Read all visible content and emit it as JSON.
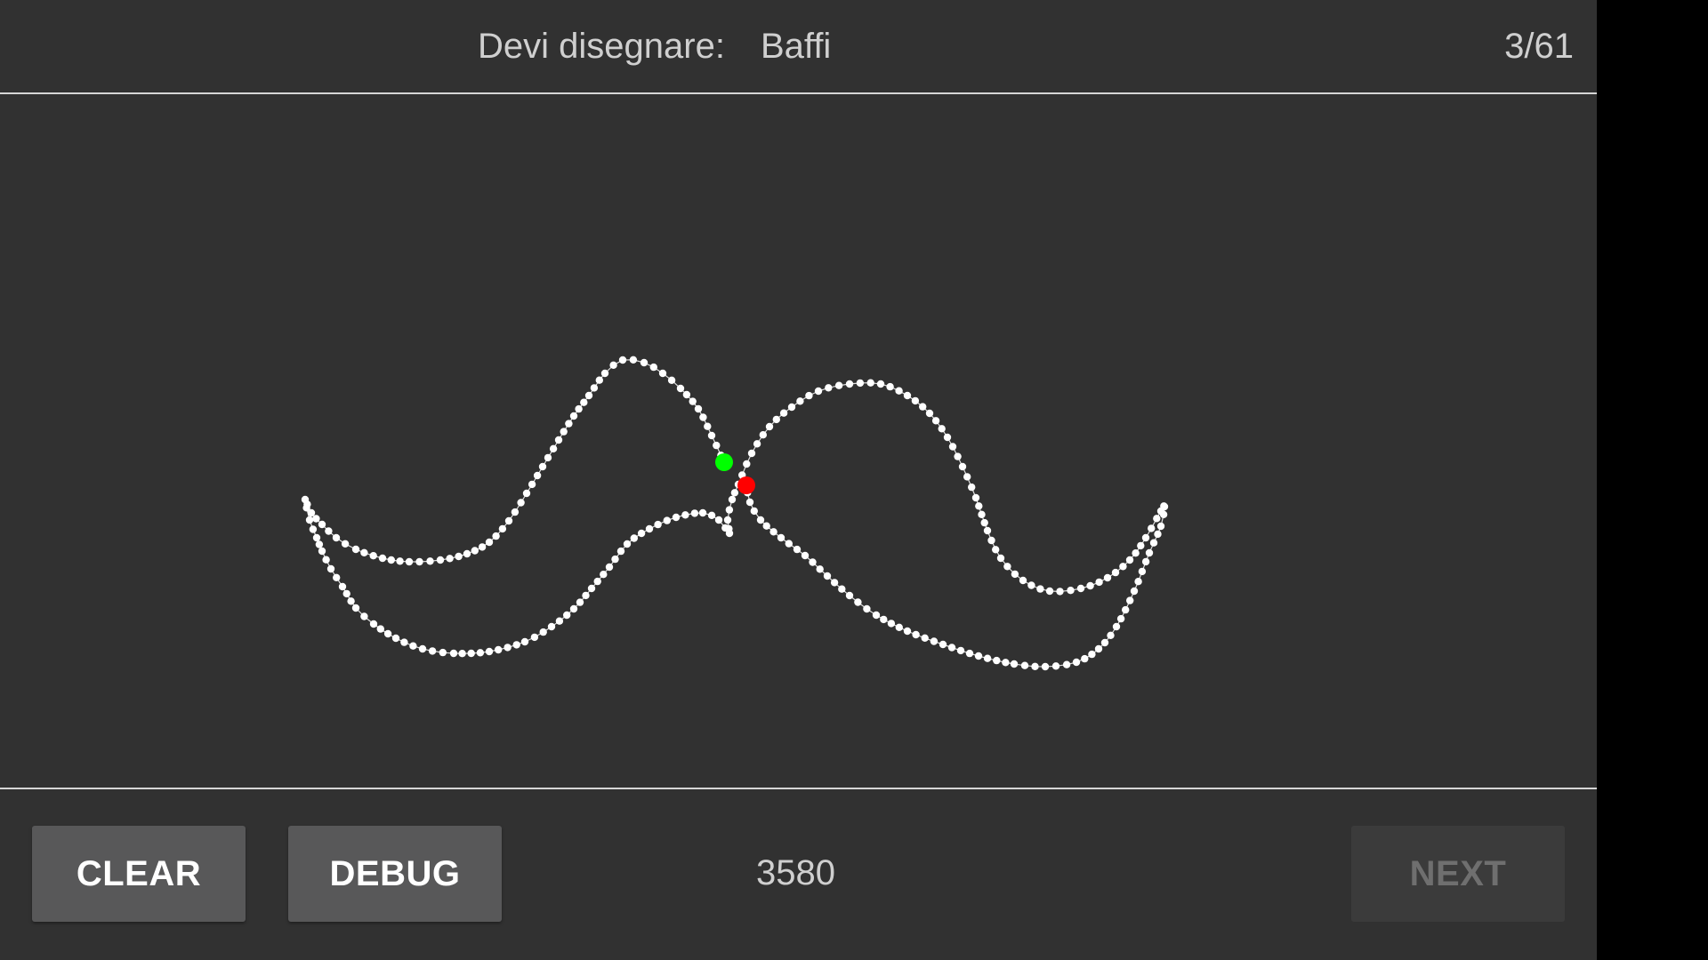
{
  "header": {
    "prompt_label": "Devi disegnare:",
    "prompt_value": "Baffi",
    "progress": "3/61"
  },
  "footer": {
    "clear_label": "CLEAR",
    "debug_label": "DEBUG",
    "score": "3580",
    "next_label": "NEXT"
  },
  "colors": {
    "background": "#313131",
    "stroke": "#ffffff",
    "start_marker": "#00ff00",
    "end_marker": "#ff0000"
  }
}
